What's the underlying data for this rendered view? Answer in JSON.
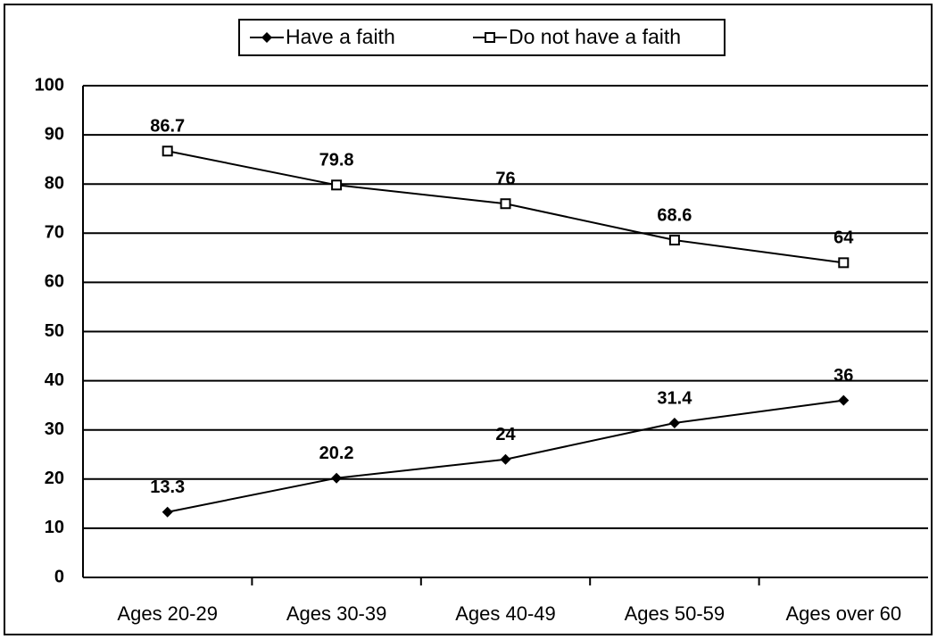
{
  "chart_data": {
    "type": "line",
    "categories": [
      "Ages 20-29",
      "Ages 30-39",
      "Ages 40-49",
      "Ages 50-59",
      "Ages over 60"
    ],
    "series": [
      {
        "name": "Have a faith",
        "color": "#000000",
        "marker": "diamond",
        "values": [
          13.3,
          20.2,
          24,
          31.4,
          36
        ]
      },
      {
        "name": "Do not have a faith",
        "color": "#000000",
        "marker": "square",
        "values": [
          86.7,
          79.8,
          76,
          68.6,
          64
        ]
      }
    ],
    "ylim": [
      0,
      100
    ],
    "yticks": [
      0,
      10,
      20,
      30,
      40,
      50,
      60,
      70,
      80,
      90,
      100
    ],
    "grid": true,
    "legend": "top"
  }
}
